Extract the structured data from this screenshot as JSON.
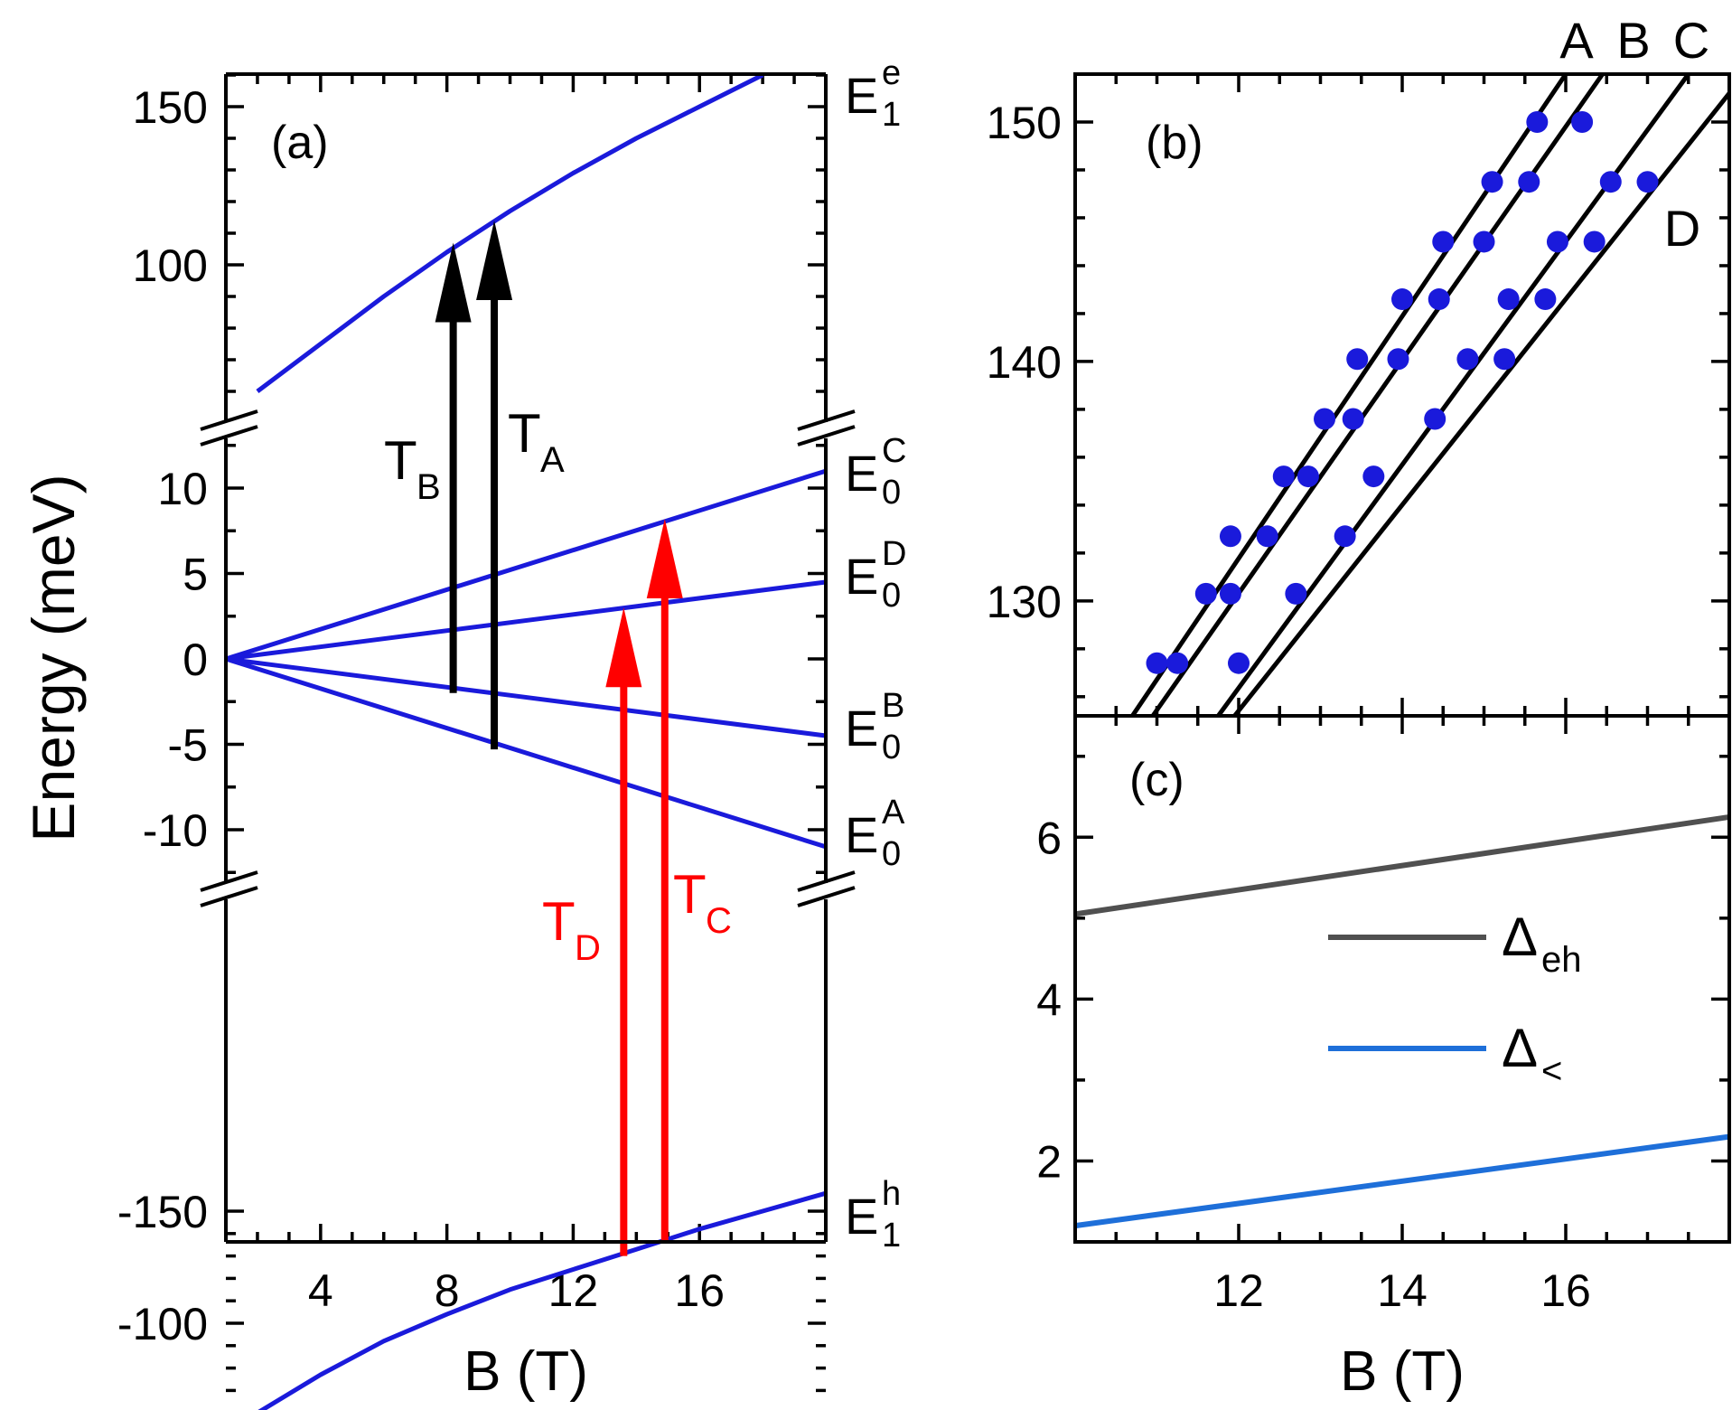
{
  "chart_data": [
    {
      "id": "a",
      "type": "line",
      "panel_label": "(a)",
      "xlabel": "B (T)",
      "ylabel": "Energy (meV)",
      "xlim": [
        1,
        20
      ],
      "x_ticks": [
        "4",
        "8",
        "12",
        "16"
      ],
      "y_ticks": {
        "upper": [
          "150",
          "100"
        ],
        "middle": [
          "10",
          "5",
          "0",
          "-5",
          "-10"
        ],
        "lower": [
          "-100",
          "-150"
        ]
      },
      "series": [
        {
          "name": "E1e",
          "label": "E",
          "sup": "e",
          "sub": "1",
          "color": "#1a1adb",
          "x": [
            2,
            4,
            6,
            8,
            10,
            12,
            14,
            16,
            18
          ],
          "y": [
            60,
            75,
            90,
            104,
            117,
            129,
            140,
            150,
            160
          ]
        },
        {
          "name": "E0C",
          "label": "E",
          "sup": "C",
          "sub": "0",
          "color": "#1a1adb",
          "x": [
            1,
            20
          ],
          "y": [
            0,
            11
          ]
        },
        {
          "name": "E0D",
          "label": "E",
          "sup": "D",
          "sub": "0",
          "color": "#1a1adb",
          "x": [
            1,
            20
          ],
          "y": [
            0,
            4.5
          ]
        },
        {
          "name": "E0B",
          "label": "E",
          "sup": "B",
          "sub": "0",
          "color": "#1a1adb",
          "x": [
            1,
            20
          ],
          "y": [
            0,
            -4.5
          ]
        },
        {
          "name": "E0A",
          "label": "E",
          "sup": "A",
          "sub": "0",
          "color": "#1a1adb",
          "x": [
            1,
            20
          ],
          "y": [
            0,
            -11
          ]
        },
        {
          "name": "E1h",
          "label": "E",
          "sup": "h",
          "sub": "1",
          "color": "#1a1adb",
          "x": [
            2,
            4,
            6,
            8,
            10,
            12,
            14,
            16,
            18,
            20
          ],
          "y": [
            -60,
            -77,
            -92,
            -104,
            -115,
            -124,
            -133,
            -142,
            -150,
            -158
          ]
        }
      ],
      "transitions": [
        {
          "name": "T_B",
          "main": "T",
          "sub": "B",
          "color": "#000000",
          "x": 8.2,
          "from": -2.0,
          "to": 107
        },
        {
          "name": "T_A",
          "main": "T",
          "sub": "A",
          "color": "#000000",
          "x": 9.5,
          "from": -5.3,
          "to": 114
        },
        {
          "name": "T_D",
          "main": "T",
          "sub": "D",
          "color": "#ff0000",
          "x": 13.6,
          "from": -130,
          "to": 3.0
        },
        {
          "name": "T_C",
          "main": "T",
          "sub": "C",
          "color": "#ff0000",
          "x": 14.9,
          "from": -137,
          "to": 8.2
        }
      ]
    },
    {
      "id": "b",
      "type": "scatter",
      "panel_label": "(b)",
      "xlim": [
        10,
        18
      ],
      "ylim": [
        125.2,
        152
      ],
      "y_ticks": [
        "150",
        "140",
        "130"
      ],
      "line_labels": [
        "A",
        "B",
        "C",
        "D"
      ],
      "marker_color": "#1a1adb",
      "line_color": "#000000",
      "fit_lines": [
        {
          "name": "A",
          "x": [
            10.7,
            16.0
          ],
          "y": [
            125.2,
            152
          ]
        },
        {
          "name": "B",
          "x": [
            10.95,
            16.45
          ],
          "y": [
            125.2,
            152
          ]
        },
        {
          "name": "C",
          "x": [
            11.75,
            17.5
          ],
          "y": [
            125.2,
            152
          ]
        },
        {
          "name": "D",
          "x": [
            11.95,
            18.0
          ],
          "y": [
            125.2,
            151.2
          ]
        }
      ],
      "points": {
        "x": [
          11.0,
          11.25,
          11.6,
          11.9,
          12.55,
          13.05,
          13.45,
          14.0,
          14.5,
          15.1,
          15.65,
          11.9,
          12.35,
          12.85,
          13.4,
          13.95,
          14.45,
          15.0,
          15.55,
          16.2,
          12.0,
          12.7,
          13.3,
          13.65,
          14.4,
          14.8,
          15.3,
          15.9,
          16.55,
          15.25,
          15.75,
          16.35,
          17.0
        ],
        "y": [
          127.4,
          127.4,
          130.3,
          132.7,
          135.2,
          137.6,
          140.1,
          142.6,
          145.0,
          147.5,
          150.0,
          130.3,
          132.7,
          135.2,
          137.6,
          140.1,
          142.6,
          145.0,
          147.5,
          150.0,
          127.4,
          130.3,
          132.7,
          135.2,
          137.6,
          140.1,
          142.6,
          145.0,
          147.5,
          140.1,
          142.6,
          145.0,
          147.5
        ]
      }
    },
    {
      "id": "c",
      "type": "line",
      "panel_label": "(c)",
      "xlabel": "B (T)",
      "xlim": [
        10,
        18
      ],
      "ylim": [
        1,
        7.5
      ],
      "x_ticks": [
        "12",
        "14",
        "16"
      ],
      "y_ticks": [
        "6",
        "4",
        "2"
      ],
      "series": [
        {
          "name": "delta-eh",
          "label": "Δ",
          "sub": "eh",
          "color": "#505050",
          "x": [
            10,
            18
          ],
          "y": [
            5.05,
            6.25
          ]
        },
        {
          "name": "delta-less",
          "label": "Δ",
          "sub": "<",
          "color": "#1e6fd9",
          "x": [
            10,
            18
          ],
          "y": [
            1.2,
            2.3
          ]
        }
      ]
    }
  ]
}
